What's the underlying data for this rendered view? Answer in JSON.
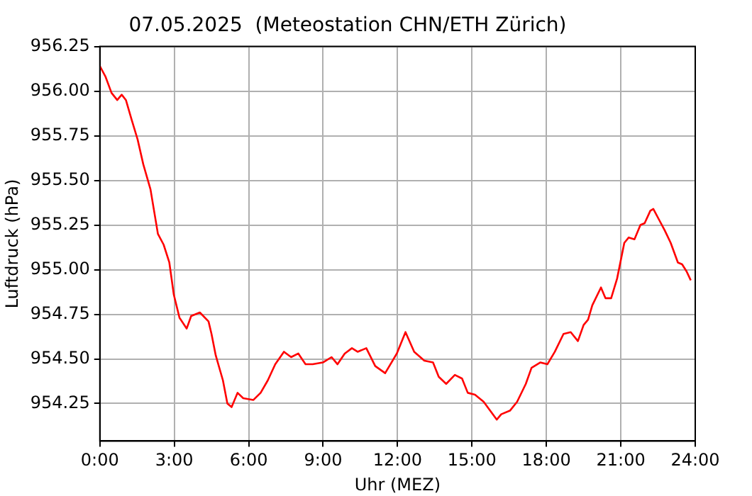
{
  "chart_data": {
    "type": "line",
    "title": "07.05.2025  (Meteostation CHN/ETH Zürich)",
    "xlabel": "Uhr (MEZ)",
    "ylabel": "Luftdruck (hPa)",
    "xlim": [
      0,
      24
    ],
    "xticks": [
      {
        "value": 0,
        "label": "0:00"
      },
      {
        "value": 3,
        "label": "3:00"
      },
      {
        "value": 6,
        "label": "6:00"
      },
      {
        "value": 9,
        "label": "9:00"
      },
      {
        "value": 12,
        "label": "12:00"
      },
      {
        "value": 15,
        "label": "15:00"
      },
      {
        "value": 18,
        "label": "18:00"
      },
      {
        "value": 21,
        "label": "21:00"
      },
      {
        "value": 24,
        "label": "24:00"
      }
    ],
    "ylim": [
      954.04,
      956.25
    ],
    "yticks": [
      {
        "value": 954.25,
        "label": "954.25"
      },
      {
        "value": 954.5,
        "label": "954.50"
      },
      {
        "value": 954.75,
        "label": "954.75"
      },
      {
        "value": 955,
        "label": "955.00"
      },
      {
        "value": 955.25,
        "label": "955.25"
      },
      {
        "value": 955.5,
        "label": "955.50"
      },
      {
        "value": 955.75,
        "label": "955.75"
      },
      {
        "value": 956,
        "label": "956.00"
      },
      {
        "value": 956.25,
        "label": "956.25"
      }
    ],
    "grid": true,
    "marker": "none",
    "line_style": "solid",
    "series": [
      {
        "color": "#ff0000",
        "x": [
          0,
          0.23,
          0.47,
          0.7,
          0.88,
          1.05,
          1.28,
          1.52,
          1.75,
          2.04,
          2.34,
          2.57,
          2.8,
          2.98,
          3.21,
          3.5,
          3.68,
          4.03,
          4.38,
          4.5,
          4.67,
          4.96,
          5.14,
          5.31,
          5.55,
          5.78,
          6.19,
          6.48,
          6.77,
          7.07,
          7.42,
          7.71,
          8,
          8.29,
          8.58,
          8.99,
          9.34,
          9.58,
          9.87,
          10.16,
          10.39,
          10.74,
          11.1,
          11.5,
          11.97,
          12.32,
          12.67,
          13.08,
          13.43,
          13.66,
          13.96,
          14.31,
          14.6,
          14.83,
          15.12,
          15.47,
          16,
          16.18,
          16.53,
          16.82,
          17.17,
          17.4,
          17.75,
          18.04,
          18.34,
          18.69,
          18.98,
          19.27,
          19.5,
          19.68,
          19.85,
          20.2,
          20.38,
          20.61,
          20.85,
          21.14,
          21.32,
          21.55,
          21.79,
          21.96,
          22.19,
          22.31,
          22.54,
          22.77,
          23.01,
          23.3,
          23.47,
          23.65,
          23.82
        ],
        "values": [
          956.14,
          956.08,
          955.99,
          955.95,
          955.98,
          955.95,
          955.84,
          955.73,
          955.59,
          955.45,
          955.2,
          955.14,
          955.04,
          954.86,
          954.73,
          954.67,
          954.74,
          954.76,
          954.71,
          954.64,
          954.52,
          954.38,
          954.25,
          954.23,
          954.31,
          954.28,
          954.27,
          954.31,
          954.38,
          954.47,
          954.54,
          954.51,
          954.53,
          954.47,
          954.47,
          954.48,
          954.51,
          954.47,
          954.53,
          954.56,
          954.54,
          954.56,
          954.46,
          954.42,
          954.53,
          954.65,
          954.54,
          954.49,
          954.48,
          954.4,
          954.36,
          954.41,
          954.39,
          954.31,
          954.3,
          954.26,
          954.16,
          954.19,
          954.21,
          954.26,
          954.36,
          954.45,
          954.48,
          954.47,
          954.54,
          954.64,
          954.65,
          954.6,
          954.69,
          954.72,
          954.8,
          954.9,
          954.84,
          954.84,
          954.95,
          955.15,
          955.18,
          955.17,
          955.25,
          955.26,
          955.33,
          955.34,
          955.28,
          955.22,
          955.15,
          955.04,
          955.03,
          954.99,
          954.94
        ]
      }
    ]
  }
}
